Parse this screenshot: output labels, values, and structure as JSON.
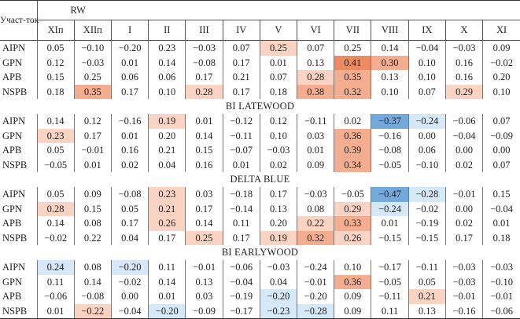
{
  "header": {
    "corner_label": "Участ-ток",
    "group_label": "RW",
    "months": [
      "XIп",
      "XIIп",
      "I",
      "II",
      "III",
      "IV",
      "V",
      "VI",
      "VII",
      "VIII",
      "IX",
      "X",
      "XI"
    ]
  },
  "colors": {
    "p1": "#fad3c3",
    "p2": "#f4ad8f",
    "p3": "#ec8b60",
    "b1": "#d5e8f8",
    "b2": "#74aadb"
  },
  "blocks": [
    {
      "title": "",
      "rows": [
        {
          "site": "AIPN",
          "values": [
            "0.05",
            "−0.10",
            "−0.20",
            "0.23",
            "−0.03",
            "0.07",
            "0.25",
            "0.07",
            "0.25",
            "0.14",
            "−0.04",
            "−0.03",
            "0.09"
          ],
          "shade": [
            "",
            "",
            "",
            "",
            "",
            "",
            "p1",
            "",
            "",
            "",
            "",
            "",
            ""
          ]
        },
        {
          "site": "GPN",
          "values": [
            "0.12",
            "−0.03",
            "0.01",
            "0.14",
            "−0.08",
            "0.17",
            "0.01",
            "0.13",
            "0.41",
            "0.30",
            "0.10",
            "0.16",
            "−0.02"
          ],
          "shade": [
            "",
            "",
            "",
            "",
            "",
            "",
            "",
            "",
            "p3",
            "p2",
            "",
            "",
            ""
          ]
        },
        {
          "site": "APB",
          "values": [
            "0.15",
            "0.25",
            "0.06",
            "0.06",
            "0.17",
            "0.21",
            "0.07",
            "0.28",
            "0.35",
            "0.13",
            "0.10",
            "0.16",
            "0.20"
          ],
          "shade": [
            "",
            "",
            "",
            "",
            "",
            "",
            "",
            "p1",
            "p2",
            "",
            "",
            "",
            ""
          ]
        },
        {
          "site": "NSPB",
          "values": [
            "0.18",
            "0.35",
            "0.17",
            "0.10",
            "0.28",
            "0.17",
            "0.18",
            "0.38",
            "0.32",
            "0.10",
            "0.07",
            "0.29",
            "0.10"
          ],
          "shade": [
            "",
            "p2",
            "",
            "",
            "p1",
            "",
            "",
            "p2",
            "p2",
            "",
            "",
            "p1",
            ""
          ]
        }
      ]
    },
    {
      "title": "BI LATEWOOD",
      "rows": [
        {
          "site": "AIPN",
          "values": [
            "0.14",
            "0.12",
            "−0.16",
            "0.19",
            "0.01",
            "−0.12",
            "0.12",
            "−0.11",
            "0.02",
            "−0.37",
            "−0.24",
            "−0.06",
            "0.07"
          ],
          "shade": [
            "",
            "",
            "",
            "p1",
            "",
            "",
            "",
            "",
            "",
            "b2",
            "b1",
            "",
            ""
          ]
        },
        {
          "site": "GPN",
          "values": [
            "0.23",
            "0.17",
            "0.01",
            "0.20",
            "0.14",
            "−0.11",
            "0.10",
            "0.03",
            "0.36",
            "−0.16",
            "0.00",
            "−0.04",
            "−0.09"
          ],
          "shade": [
            "p1",
            "",
            "",
            "",
            "",
            "",
            "",
            "",
            "p2",
            "",
            "",
            "",
            ""
          ]
        },
        {
          "site": "APB",
          "values": [
            "0.05",
            "−0.01",
            "0.16",
            "0.21",
            "0.15",
            "−0.07",
            "−0.03",
            "0.01",
            "0.39",
            "−0.08",
            "0.06",
            "0.00",
            "0.00"
          ],
          "shade": [
            "",
            "",
            "",
            "",
            "",
            "",
            "",
            "",
            "p2",
            "",
            "",
            "",
            ""
          ]
        },
        {
          "site": "NSPB",
          "values": [
            "−0.05",
            "0.01",
            "0.02",
            "0.04",
            "0.16",
            "0.01",
            "0.02",
            "0.09",
            "0.34",
            "−0.05",
            "−0.10",
            "0.02",
            "0.07"
          ],
          "shade": [
            "",
            "",
            "",
            "",
            "",
            "",
            "",
            "",
            "p2",
            "",
            "",
            "",
            ""
          ]
        }
      ]
    },
    {
      "title": "DELTA BLUE",
      "rows": [
        {
          "site": "AIPN",
          "values": [
            "0.05",
            "0.09",
            "−0.08",
            "0.23",
            "0.03",
            "−0.18",
            "0.17",
            "−0.03",
            "−0.05",
            "−0.47",
            "−0.28",
            "−0.01",
            "0.15"
          ],
          "shade": [
            "",
            "",
            "",
            "p1",
            "",
            "",
            "",
            "",
            "",
            "b2",
            "b1",
            "",
            ""
          ]
        },
        {
          "site": "GPN",
          "values": [
            "0.28",
            "0.15",
            "0.05",
            "0.21",
            "0.17",
            "−0.14",
            "0.13",
            "0.08",
            "0.29",
            "−0.24",
            "−0.02",
            "0.00",
            "−0.04"
          ],
          "shade": [
            "p1",
            "",
            "",
            "p1",
            "",
            "",
            "",
            "",
            "p1",
            "b1",
            "",
            "",
            ""
          ]
        },
        {
          "site": "APB",
          "values": [
            "0.14",
            "0.08",
            "0.17",
            "0.26",
            "0.14",
            "0.11",
            "0.20",
            "0.22",
            "0.33",
            "0.01",
            "−0.19",
            "0.02",
            "0.01"
          ],
          "shade": [
            "",
            "",
            "",
            "p1",
            "",
            "",
            "",
            "p1",
            "p2",
            "",
            "",
            "",
            ""
          ]
        },
        {
          "site": "NSPB",
          "values": [
            "−0.02",
            "0.22",
            "0.04",
            "0.17",
            "0.25",
            "0.17",
            "0.19",
            "0.32",
            "0.26",
            "−0.15",
            "−0.15",
            "0.17",
            "0.18"
          ],
          "shade": [
            "",
            "",
            "",
            "",
            "p1",
            "",
            "p1",
            "p2",
            "p1",
            "",
            "",
            "",
            ""
          ]
        }
      ]
    },
    {
      "title": "BI EARLYWOOD",
      "rows": [
        {
          "site": "AIPN",
          "values": [
            "0.24",
            "0.08",
            "−0.20",
            "0.11",
            "−0.01",
            "−0.06",
            "−0.03",
            "−0.24",
            "0.10",
            "−0.17",
            "−0.11",
            "−0.03",
            "−0.03"
          ],
          "shade": [
            "b1",
            "",
            "b1",
            "",
            "",
            "",
            "",
            "",
            "",
            "",
            "",
            "",
            ""
          ]
        },
        {
          "site": "GPN",
          "values": [
            "0.11",
            "0.14",
            "−0.02",
            "0.14",
            "0.13",
            "−0.04",
            "0.04",
            "−0.01",
            "0.36",
            "−0.05",
            "0.05",
            "−0.03",
            "−0.10"
          ],
          "shade": [
            "",
            "",
            "",
            "",
            "",
            "",
            "",
            "",
            "p2",
            "",
            "",
            "",
            ""
          ]
        },
        {
          "site": "APB",
          "values": [
            "−0.06",
            "−0.08",
            "0.00",
            "0.01",
            "0.03",
            "−0.19",
            "−0.20",
            "−0.20",
            "0.09",
            "−0.11",
            "0.21",
            "−0.01",
            "−0.01"
          ],
          "shade": [
            "",
            "",
            "",
            "",
            "",
            "",
            "b1",
            "",
            "",
            "",
            "p1",
            "",
            ""
          ]
        },
        {
          "site": "NSPB",
          "values": [
            "0.01",
            "−0.22",
            "−0.04",
            "−0.20",
            "−0.09",
            "−0.17",
            "−0.23",
            "−0.28",
            "0.09",
            "0.11",
            "0.13",
            "−0.16",
            "−0.06"
          ],
          "shade": [
            "",
            "p1",
            "",
            "b1",
            "",
            "",
            "b1",
            "b1",
            "",
            "",
            "",
            "",
            ""
          ]
        }
      ]
    }
  ]
}
